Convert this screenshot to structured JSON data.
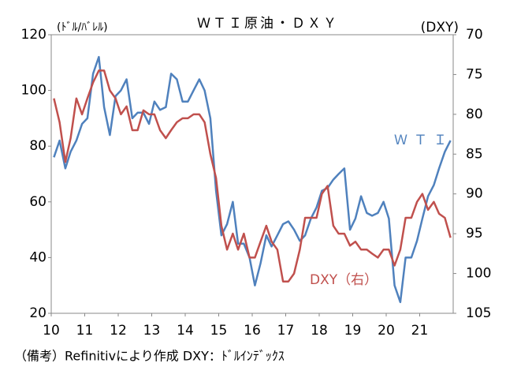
{
  "chart_data": {
    "type": "line",
    "title": "ＷＴＩ原油・ＤＸＹ",
    "y_label": "(ﾄﾞﾙ/ﾊﾞﾚﾙ)",
    "y2_label": "(DXY)",
    "footnote": "（備考）Refinitivにより作成 DXY：ﾄﾞﾙｲﾝﾃﾞｯｸｽ",
    "x": [
      2010.08,
      2010.25,
      2010.42,
      2010.58,
      2010.75,
      2010.92,
      2011.08,
      2011.25,
      2011.42,
      2011.58,
      2011.75,
      2011.92,
      2012.08,
      2012.25,
      2012.42,
      2012.58,
      2012.75,
      2012.92,
      2013.08,
      2013.25,
      2013.42,
      2013.58,
      2013.75,
      2013.92,
      2014.08,
      2014.25,
      2014.42,
      2014.58,
      2014.75,
      2014.92,
      2015.08,
      2015.25,
      2015.42,
      2015.58,
      2015.75,
      2015.92,
      2016.08,
      2016.25,
      2016.42,
      2016.58,
      2016.75,
      2016.92,
      2017.08,
      2017.25,
      2017.42,
      2017.58,
      2017.75,
      2017.92,
      2018.08,
      2018.25,
      2018.42,
      2018.58,
      2018.75,
      2018.92,
      2019.08,
      2019.25,
      2019.42,
      2019.58,
      2019.75,
      2019.92,
      2020.08,
      2020.25,
      2020.42,
      2020.58,
      2020.75,
      2020.92,
      2021.08,
      2021.25,
      2021.42,
      2021.58,
      2021.75,
      2021.92
    ],
    "series": [
      {
        "name": "ＷＴＩ",
        "color": "#4f81bd",
        "axis": "y",
        "values": [
          76,
          82,
          72,
          78,
          82,
          88,
          90,
          106,
          112,
          94,
          84,
          98,
          100,
          104,
          90,
          92,
          92,
          88,
          96,
          93,
          94,
          106,
          104,
          96,
          96,
          100,
          104,
          100,
          90,
          64,
          48,
          52,
          60,
          45,
          45,
          40,
          30,
          38,
          48,
          44,
          48,
          52,
          53,
          50,
          46,
          48,
          54,
          58,
          64,
          65,
          68,
          70,
          72,
          50,
          54,
          62,
          56,
          55,
          56,
          60,
          54,
          30,
          24,
          40,
          40,
          46,
          54,
          62,
          66,
          72,
          78,
          82
        ]
      },
      {
        "name": "DXY（右）",
        "color": "#c0504d",
        "axis": "y2",
        "values": [
          78,
          81,
          86,
          83,
          78,
          80,
          78,
          76,
          74.5,
          74.5,
          77,
          78,
          80,
          79,
          82,
          82,
          79.5,
          80,
          80,
          82,
          83,
          82,
          81,
          80.5,
          80.5,
          80,
          80,
          81,
          85,
          88,
          94,
          97,
          95,
          97,
          95,
          98,
          98,
          96,
          94,
          96,
          97,
          101,
          101,
          100,
          97,
          93,
          93,
          93,
          90,
          89,
          94,
          95,
          95,
          96.5,
          96,
          97,
          97,
          97.5,
          98,
          97,
          97,
          99,
          97,
          93,
          93,
          91,
          90,
          92,
          91,
          92.5,
          93,
          95.5
        ]
      }
    ],
    "xlim": [
      2010,
      2022
    ],
    "xticks": [
      {
        "value": 2010,
        "label": "10"
      },
      {
        "value": 2011,
        "label": "11"
      },
      {
        "value": 2012,
        "label": "12"
      },
      {
        "value": 2013,
        "label": "13"
      },
      {
        "value": 2014,
        "label": "14"
      },
      {
        "value": 2015,
        "label": "15"
      },
      {
        "value": 2016,
        "label": "16"
      },
      {
        "value": 2017,
        "label": "17"
      },
      {
        "value": 2018,
        "label": "18"
      },
      {
        "value": 2019,
        "label": "19"
      },
      {
        "value": 2020,
        "label": "20"
      },
      {
        "value": 2021,
        "label": "21"
      }
    ],
    "ylim": [
      20,
      120
    ],
    "yticks": [
      20,
      40,
      60,
      80,
      100,
      120
    ],
    "y2lim": [
      105,
      70
    ],
    "y2ticks": [
      70,
      75,
      80,
      85,
      90,
      95,
      100,
      105
    ],
    "grid": false
  }
}
